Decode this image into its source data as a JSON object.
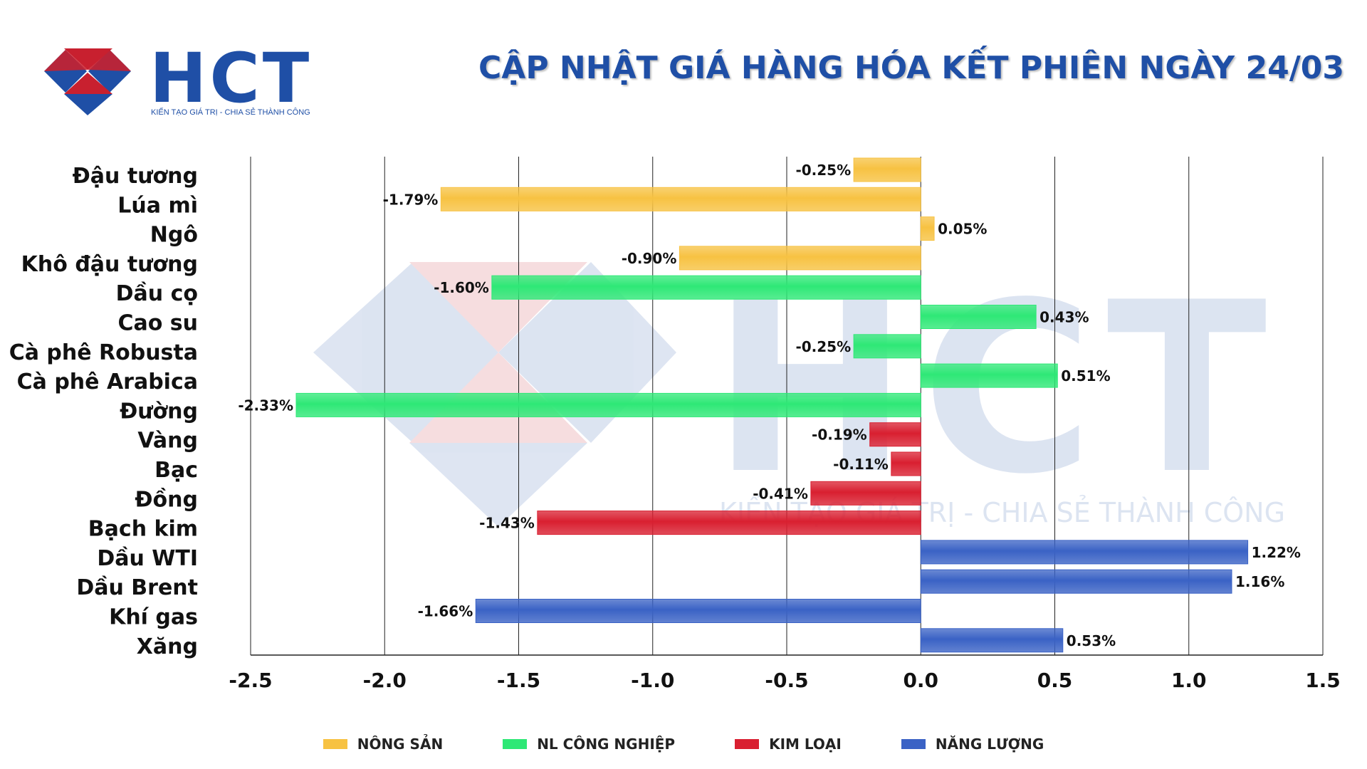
{
  "header": {
    "logo_text": "HCT",
    "logo_tagline": "KIẾN TẠO GIÁ TRỊ - CHIA SẺ THÀNH CÔNG",
    "title": "CẬP NHẬT GIÁ HÀNG HÓA KẾT PHIÊN NGÀY 24/03"
  },
  "watermark": {
    "text": "HCT",
    "tagline": "KIẾN TẠO GIÁ TRỊ - CHIA SẺ THÀNH CÔNG"
  },
  "colors": {
    "brand_blue": "#1f4fa6",
    "brand_red": "#c8202f",
    "nong_san": "#f7c242",
    "nl_cong_nghiep": "#2ee876",
    "kim_loai": "#d91f30",
    "nang_luong": "#3a62c5"
  },
  "chart_data": {
    "type": "bar",
    "orientation": "horizontal",
    "title": "CẬP NHẬT GIÁ HÀNG HÓA KẾT PHIÊN NGÀY 24/03",
    "xlabel": "",
    "ylabel": "",
    "xlim": [
      -2.5,
      1.5
    ],
    "xticks": [
      "-2.5",
      "-2.0",
      "-1.5",
      "-1.0",
      "-0.5",
      "0.0",
      "0.5",
      "1.0",
      "1.5"
    ],
    "grid": "vertical",
    "legend_position": "bottom",
    "groups": [
      {
        "name": "NÔNG SẢN",
        "color": "#f7c242"
      },
      {
        "name": "NL CÔNG NGHIỆP",
        "color": "#2ee876"
      },
      {
        "name": "KIM LOẠI",
        "color": "#d91f30"
      },
      {
        "name": "NĂNG LƯỢNG",
        "color": "#3a62c5"
      }
    ],
    "categories": [
      "Đậu tương",
      "Lúa mì",
      "Ngô",
      "Khô đậu tương",
      "Dầu cọ",
      "Cao su",
      "Cà phê Robusta",
      "Cà phê Arabica",
      "Đường",
      "Vàng",
      "Bạc",
      "Đồng",
      "Bạch kim",
      "Dầu WTI",
      "Dầu Brent",
      "Khí gas",
      "Xăng"
    ],
    "values": [
      -0.25,
      -1.79,
      0.05,
      -0.9,
      -1.6,
      0.43,
      -0.25,
      0.51,
      -2.33,
      -0.19,
      -0.11,
      -0.41,
      -1.43,
      1.22,
      1.16,
      -1.66,
      0.53
    ],
    "value_labels": [
      "-0.25%",
      "-1.79%",
      "0.05%",
      "-0.90%",
      "-1.60%",
      "0.43%",
      "-0.25%",
      "0.51%",
      "-2.33%",
      "-0.19%",
      "-0.11%",
      "-0.41%",
      "-1.43%",
      "1.22%",
      "1.16%",
      "-1.66%",
      "0.53%"
    ],
    "category_group": [
      0,
      0,
      0,
      0,
      1,
      1,
      1,
      1,
      1,
      2,
      2,
      2,
      2,
      3,
      3,
      3,
      3
    ]
  }
}
